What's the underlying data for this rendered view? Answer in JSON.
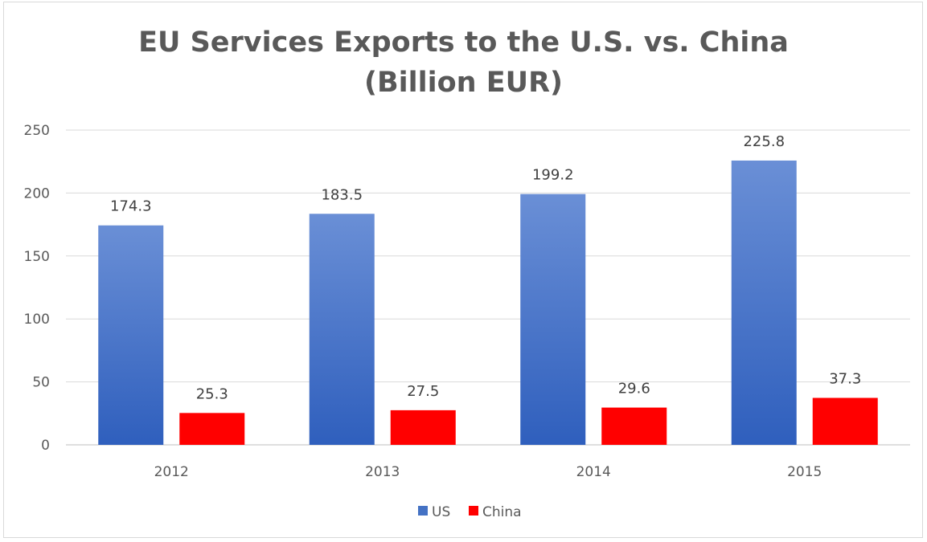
{
  "chart_data": {
    "type": "bar",
    "title_lines": [
      "EU Services Exports to the U.S. vs. China",
      "(Billion EUR)"
    ],
    "xlabel": "",
    "ylabel": "",
    "categories": [
      "2012",
      "2013",
      "2014",
      "2015"
    ],
    "series": [
      {
        "name": "US",
        "values": [
          174.3,
          183.5,
          199.2,
          225.8
        ],
        "color": "#4472c4"
      },
      {
        "name": "China",
        "values": [
          25.3,
          27.5,
          29.6,
          37.3
        ],
        "color": "#ff0000"
      }
    ],
    "ylim": [
      0,
      250
    ],
    "yticks": [
      0,
      50,
      100,
      150,
      200,
      250
    ],
    "grid": true,
    "legend_position": "bottom",
    "data_labels": true
  }
}
